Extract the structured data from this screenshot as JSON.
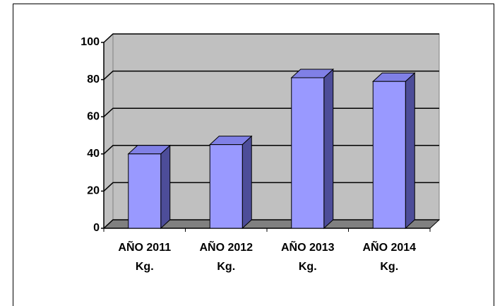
{
  "chart_data": {
    "type": "bar",
    "categories": [
      "AÑO 2011 Kg.",
      "AÑO 2012 Kg.",
      "AÑO 2013 Kg.",
      "AÑO 2014 Kg."
    ],
    "values": [
      40,
      45,
      81,
      79
    ],
    "color": "#9999ff",
    "ylim": [
      0,
      100
    ],
    "yticks": [
      0,
      20,
      40,
      60,
      80,
      100
    ],
    "grid": true
  }
}
